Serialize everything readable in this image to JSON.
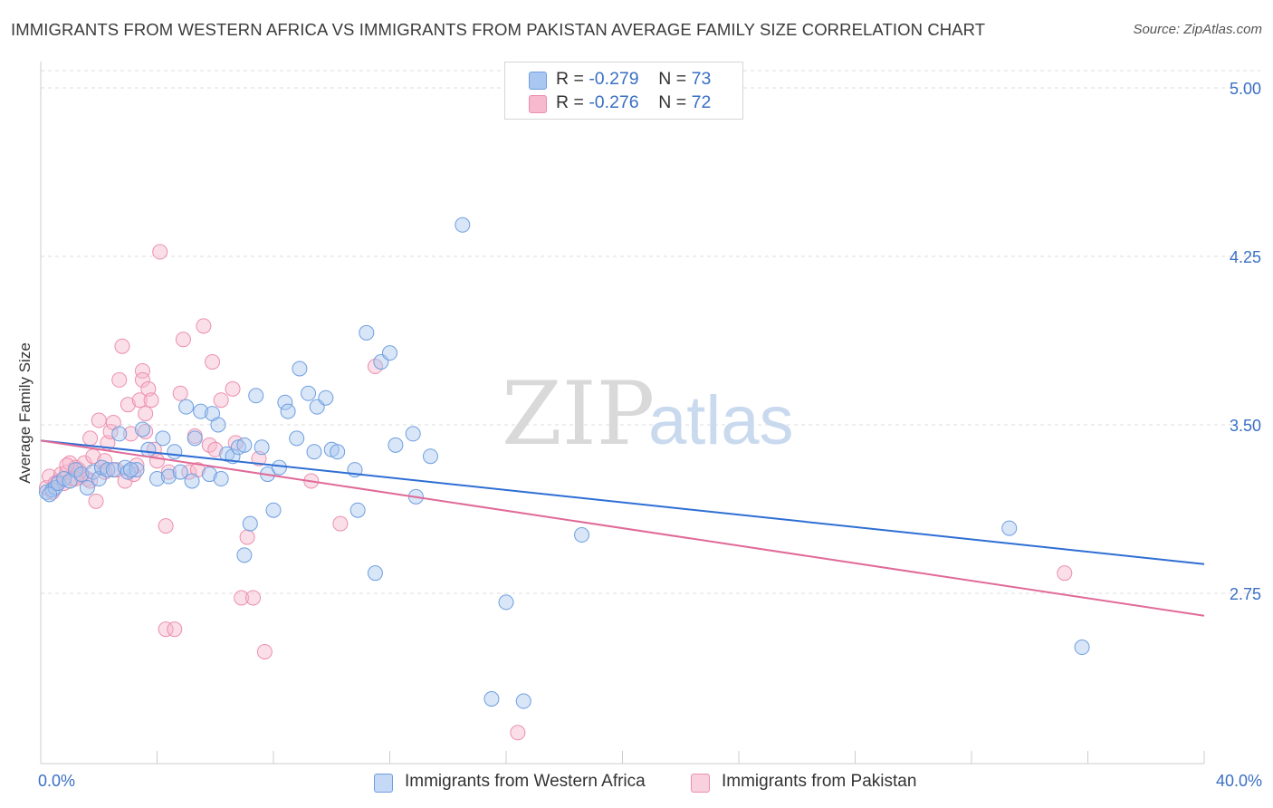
{
  "title": "IMMIGRANTS FROM WESTERN AFRICA VS IMMIGRANTS FROM PAKISTAN AVERAGE FAMILY SIZE CORRELATION CHART",
  "source": "Source: ZipAtlas.com",
  "watermark": {
    "zip": "ZIP",
    "atlas": "atlas"
  },
  "legend": {
    "rows": [
      {
        "r_label": "R = ",
        "r_value": "-0.279",
        "n_label": "N = ",
        "n_value": "73"
      },
      {
        "r_label": "R = ",
        "r_value": "-0.276",
        "n_label": "N = ",
        "n_value": "72"
      }
    ]
  },
  "colors": {
    "blue_fill": "#a9c7f0",
    "blue_stroke": "#6f9ee0",
    "blue_line": "#2e6ed4",
    "pink_fill": "#f6b9cd",
    "pink_stroke": "#ec8fae",
    "pink_line": "#e06a98",
    "tick_label": "#3a6fc4",
    "grid": "#dddddd"
  },
  "chart_data": {
    "type": "scatter",
    "title": "IMMIGRANTS FROM WESTERN AFRICA VS IMMIGRANTS FROM PAKISTAN AVERAGE FAMILY SIZE CORRELATION CHART",
    "xlabel": "",
    "ylabel": "Average Family Size",
    "xlim": [
      0,
      40
    ],
    "ylim": [
      2.1,
      5.1
    ],
    "x_tick_labels": [
      "0.0%",
      "40.0%"
    ],
    "y_ticks": [
      2.75,
      3.5,
      4.25,
      5.0
    ],
    "y_tick_labels": [
      "2.75",
      "3.50",
      "4.25",
      "5.00"
    ],
    "grid": true,
    "legend_position": "top-center and bottom",
    "series": [
      {
        "name": "Immigrants from Western Africa",
        "color": "#6f9ee0",
        "trend": {
          "x": [
            0,
            40
          ],
          "y": [
            3.43,
            2.88
          ]
        },
        "points": [
          [
            0.2,
            3.2
          ],
          [
            0.4,
            3.21
          ],
          [
            0.5,
            3.22
          ],
          [
            0.6,
            3.24
          ],
          [
            0.8,
            3.26
          ],
          [
            1.0,
            3.25
          ],
          [
            1.2,
            3.3
          ],
          [
            1.4,
            3.28
          ],
          [
            1.6,
            3.22
          ],
          [
            1.8,
            3.29
          ],
          [
            2.0,
            3.26
          ],
          [
            2.1,
            3.31
          ],
          [
            2.3,
            3.3
          ],
          [
            2.5,
            3.3
          ],
          [
            2.7,
            3.46
          ],
          [
            2.9,
            3.31
          ],
          [
            3.0,
            3.29
          ],
          [
            3.3,
            3.3
          ],
          [
            3.5,
            3.48
          ],
          [
            3.7,
            3.39
          ],
          [
            4.0,
            3.26
          ],
          [
            4.2,
            3.44
          ],
          [
            4.4,
            3.27
          ],
          [
            4.6,
            3.38
          ],
          [
            4.8,
            3.29
          ],
          [
            5.0,
            3.58
          ],
          [
            5.2,
            3.25
          ],
          [
            5.3,
            3.44
          ],
          [
            5.5,
            3.56
          ],
          [
            5.8,
            3.28
          ],
          [
            5.9,
            3.55
          ],
          [
            6.1,
            3.5
          ],
          [
            6.2,
            3.26
          ],
          [
            6.4,
            3.37
          ],
          [
            6.6,
            3.36
          ],
          [
            6.8,
            3.4
          ],
          [
            7.0,
            3.41
          ],
          [
            7.2,
            3.06
          ],
          [
            7.4,
            3.63
          ],
          [
            7.6,
            3.4
          ],
          [
            7.8,
            3.28
          ],
          [
            7.0,
            2.92
          ],
          [
            8.0,
            3.12
          ],
          [
            8.2,
            3.31
          ],
          [
            8.4,
            3.6
          ],
          [
            8.5,
            3.56
          ],
          [
            8.8,
            3.44
          ],
          [
            8.9,
            3.75
          ],
          [
            9.2,
            3.64
          ],
          [
            9.4,
            3.38
          ],
          [
            9.5,
            3.58
          ],
          [
            9.8,
            3.62
          ],
          [
            10.0,
            3.39
          ],
          [
            10.2,
            3.38
          ],
          [
            10.8,
            3.3
          ],
          [
            10.9,
            3.12
          ],
          [
            11.2,
            3.91
          ],
          [
            11.5,
            2.84
          ],
          [
            11.7,
            3.78
          ],
          [
            12.0,
            3.82
          ],
          [
            12.2,
            3.41
          ],
          [
            12.8,
            3.46
          ],
          [
            12.9,
            3.18
          ],
          [
            13.4,
            3.36
          ],
          [
            14.5,
            4.39
          ],
          [
            15.5,
            2.28
          ],
          [
            16.0,
            2.71
          ],
          [
            16.6,
            2.27
          ],
          [
            18.6,
            3.01
          ],
          [
            33.3,
            3.04
          ],
          [
            35.8,
            2.51
          ],
          [
            0.3,
            3.19
          ],
          [
            3.1,
            3.3
          ]
        ]
      },
      {
        "name": "Immigrants from Pakistan",
        "color": "#ec8fae",
        "trend": {
          "x": [
            0,
            40
          ],
          "y": [
            3.43,
            2.65
          ]
        },
        "points": [
          [
            0.2,
            3.22
          ],
          [
            0.3,
            3.27
          ],
          [
            0.4,
            3.2
          ],
          [
            0.6,
            3.25
          ],
          [
            0.7,
            3.28
          ],
          [
            0.8,
            3.24
          ],
          [
            0.9,
            3.29
          ],
          [
            1.0,
            3.33
          ],
          [
            1.1,
            3.26
          ],
          [
            1.2,
            3.31
          ],
          [
            1.3,
            3.3
          ],
          [
            1.4,
            3.27
          ],
          [
            1.5,
            3.33
          ],
          [
            1.6,
            3.26
          ],
          [
            1.7,
            3.44
          ],
          [
            1.8,
            3.36
          ],
          [
            1.9,
            3.16
          ],
          [
            2.0,
            3.52
          ],
          [
            2.1,
            3.31
          ],
          [
            2.2,
            3.34
          ],
          [
            2.3,
            3.42
          ],
          [
            2.4,
            3.47
          ],
          [
            2.5,
            3.51
          ],
          [
            2.6,
            3.3
          ],
          [
            2.7,
            3.7
          ],
          [
            2.8,
            3.85
          ],
          [
            2.9,
            3.25
          ],
          [
            3.0,
            3.59
          ],
          [
            3.1,
            3.46
          ],
          [
            3.2,
            3.28
          ],
          [
            3.3,
            3.32
          ],
          [
            3.4,
            3.61
          ],
          [
            3.5,
            3.74
          ],
          [
            3.5,
            3.7
          ],
          [
            3.6,
            3.47
          ],
          [
            3.7,
            3.66
          ],
          [
            3.8,
            3.61
          ],
          [
            3.9,
            3.39
          ],
          [
            4.0,
            3.34
          ],
          [
            4.1,
            4.27
          ],
          [
            4.3,
            3.05
          ],
          [
            4.3,
            2.59
          ],
          [
            4.4,
            3.29
          ],
          [
            4.6,
            2.59
          ],
          [
            4.8,
            3.64
          ],
          [
            4.9,
            3.88
          ],
          [
            5.1,
            3.29
          ],
          [
            5.3,
            3.45
          ],
          [
            5.4,
            3.3
          ],
          [
            5.6,
            3.94
          ],
          [
            5.8,
            3.41
          ],
          [
            5.9,
            3.78
          ],
          [
            6.2,
            3.61
          ],
          [
            6.6,
            3.66
          ],
          [
            6.7,
            3.42
          ],
          [
            6.9,
            2.73
          ],
          [
            7.1,
            3.0
          ],
          [
            7.3,
            2.73
          ],
          [
            7.5,
            3.35
          ],
          [
            7.7,
            2.49
          ],
          [
            9.3,
            3.25
          ],
          [
            10.3,
            3.06
          ],
          [
            11.5,
            3.76
          ],
          [
            16.4,
            2.13
          ],
          [
            1.2,
            3.26
          ],
          [
            0.5,
            3.24
          ],
          [
            2.2,
            3.29
          ],
          [
            3.6,
            3.55
          ],
          [
            6.0,
            3.39
          ],
          [
            35.2,
            2.84
          ],
          [
            0.9,
            3.32
          ],
          [
            1.7,
            3.25
          ]
        ]
      }
    ]
  },
  "bottom_legend": {
    "blue_label": "Immigrants from Western Africa",
    "pink_label": "Immigrants from Pakistan"
  }
}
